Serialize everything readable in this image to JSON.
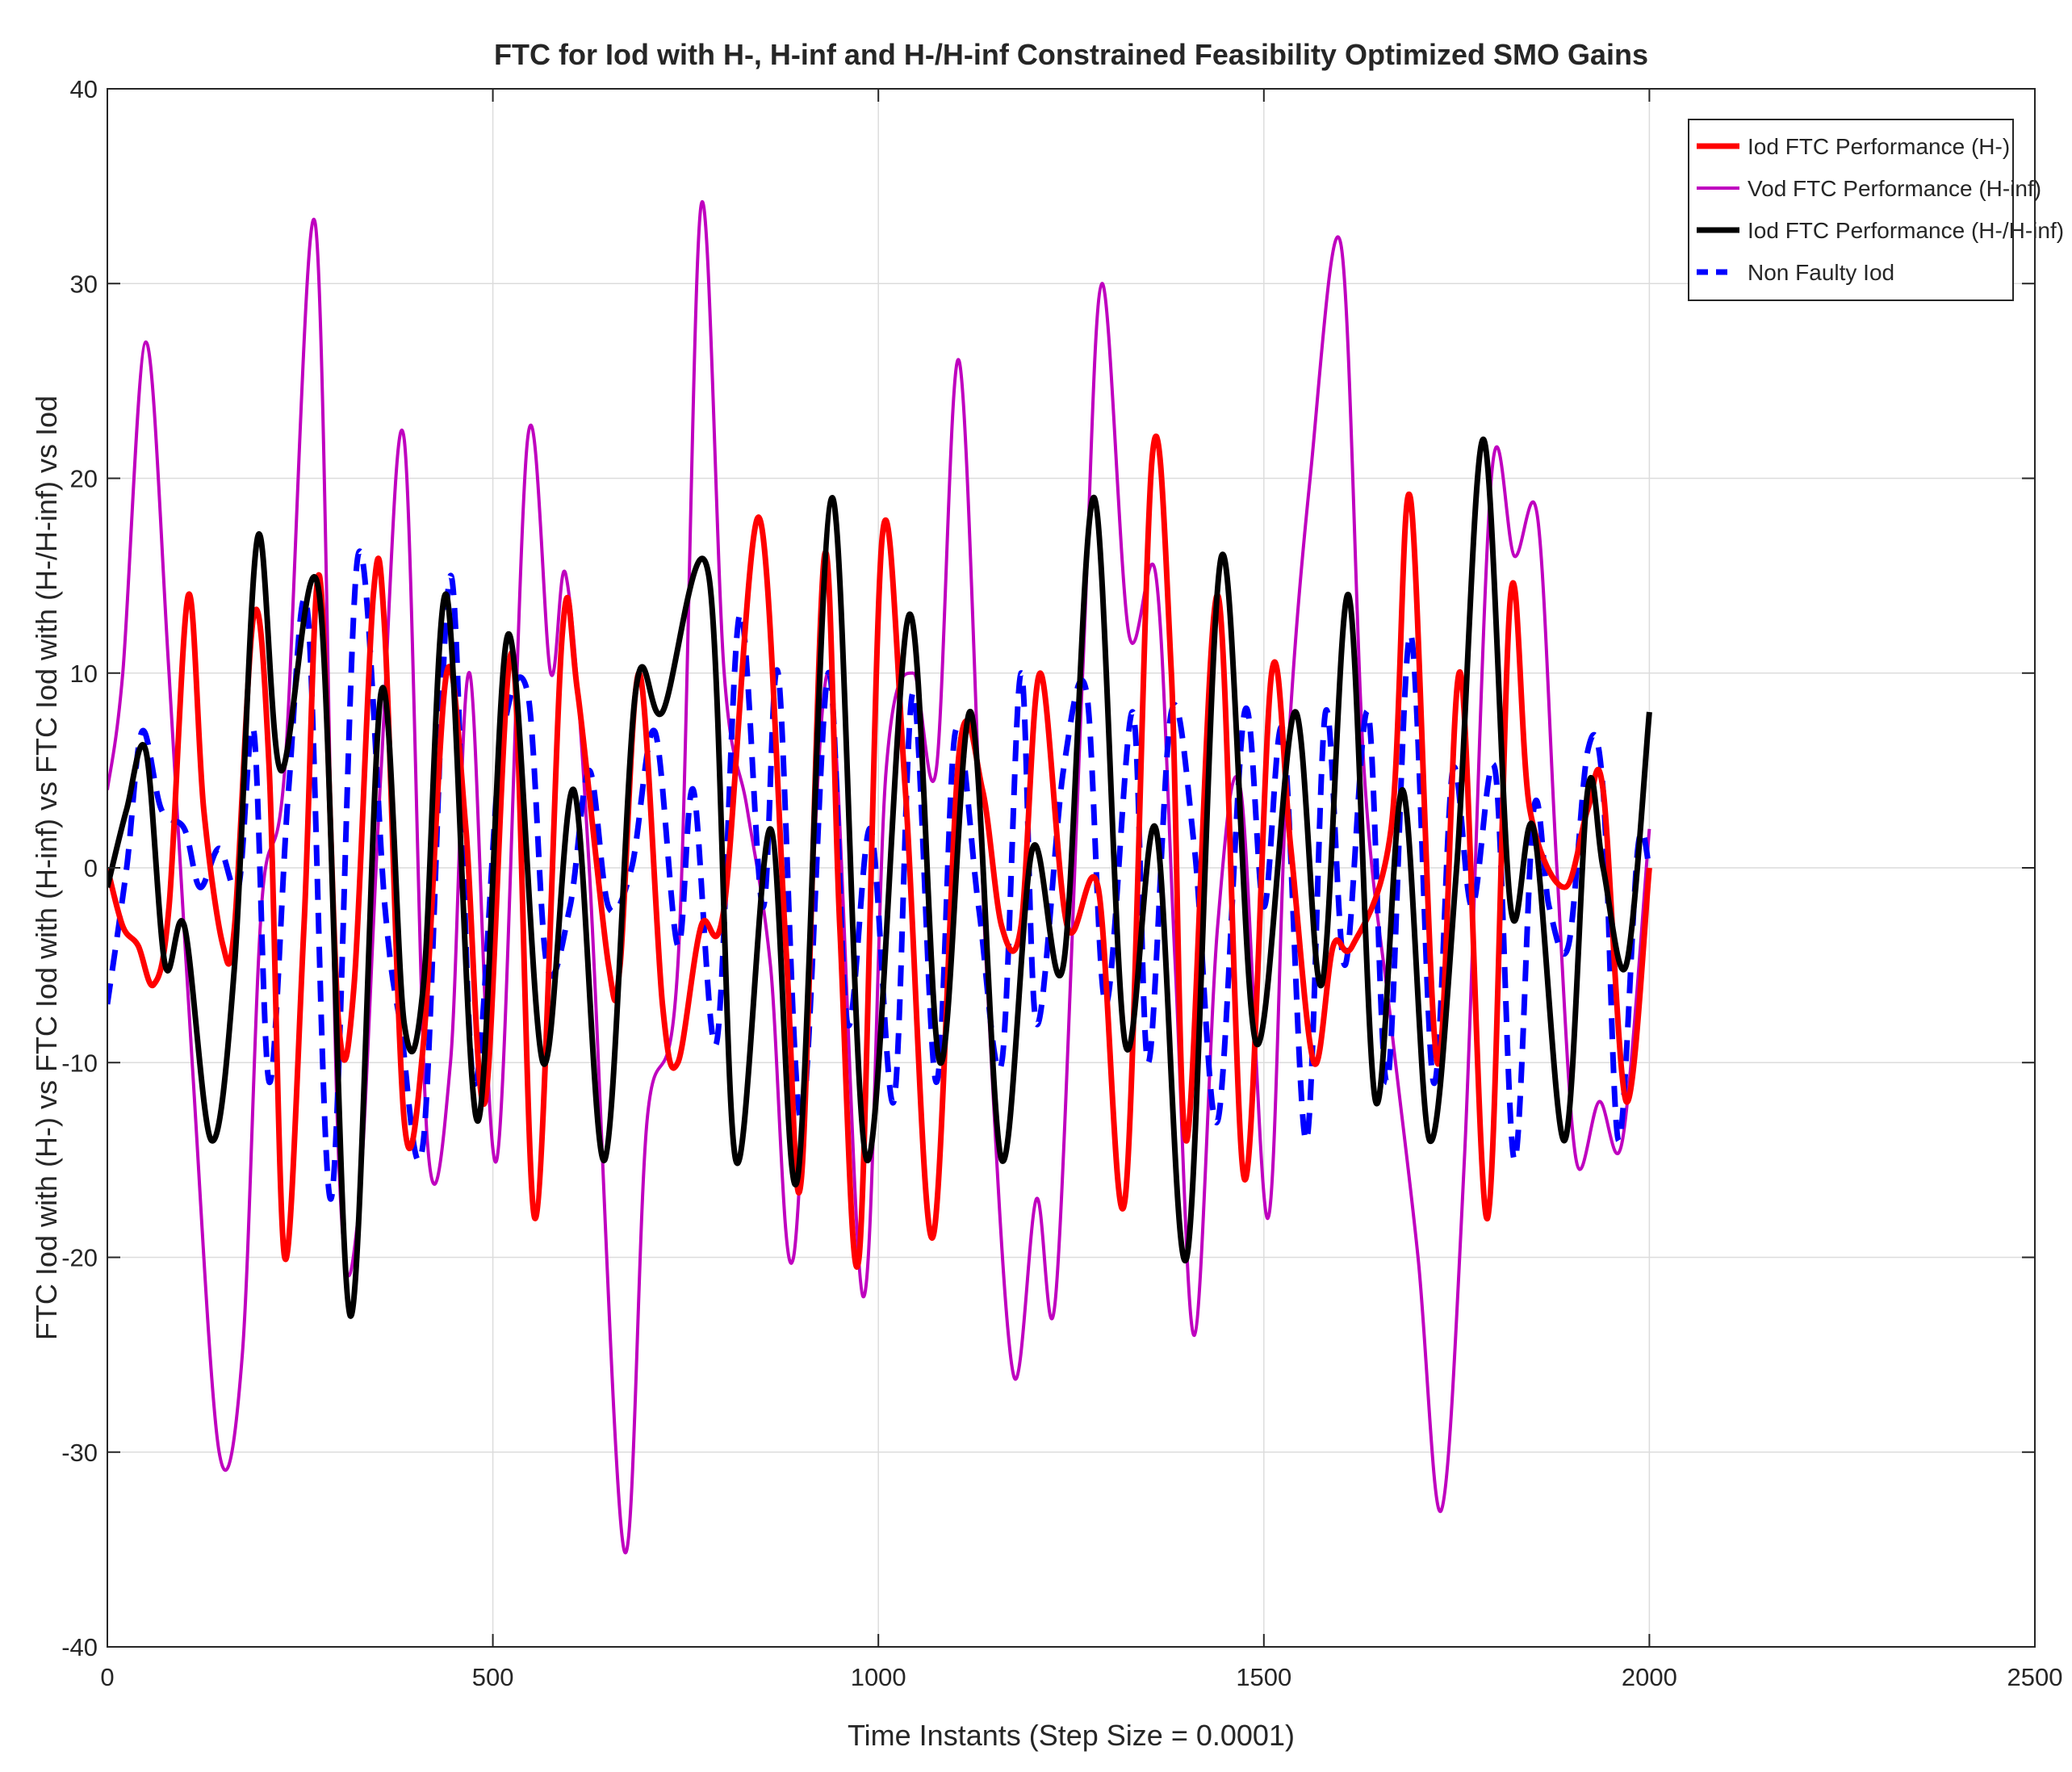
{
  "chart_data": {
    "type": "line",
    "title": "FTC for Iod with H-, H-inf and H-/H-inf Constrained Feasibility Optimized SMO Gains",
    "xlabel": "Time Instants (Step Size = 0.0001)",
    "ylabel": "FTC Iod with (H-) vs FTC Iod with (H-inf) vs FTC Iod with (H-/H-inf) vs Iod",
    "xlim": [
      0,
      2500
    ],
    "ylim": [
      -40,
      40
    ],
    "xticks": [
      0,
      500,
      1000,
      1500,
      2000,
      2500
    ],
    "yticks": [
      -40,
      -30,
      -20,
      -10,
      0,
      10,
      20,
      30,
      40
    ],
    "grid": true,
    "legend_location": "top-right",
    "series": [
      {
        "name": "Iod FTC Performance (H-)",
        "color": "#ff0000",
        "style": "solid",
        "x": [
          0,
          20,
          40,
          60,
          80,
          105,
          125,
          150,
          165,
          190,
          210,
          230,
          255,
          275,
          300,
          320,
          345,
          360,
          385,
          410,
          440,
          465,
          490,
          525,
          555,
          590,
          610,
          650,
          665,
          690,
          720,
          740,
          770,
          800,
          845,
          880,
          900,
          930,
          950,
          975,
          1005,
          1035,
          1070,
          1105,
          1135,
          1160,
          1185,
          1210,
          1245,
          1285,
          1320,
          1355,
          1380,
          1400,
          1440,
          1475,
          1510,
          1535,
          1565,
          1590,
          1615,
          1665,
          1690,
          1725,
          1755,
          1790,
          1820,
          1845,
          1890,
          1920,
          1940,
          1970,
          2000
        ],
        "y": [
          0,
          -3,
          -4,
          -6,
          -2,
          14,
          3,
          -4,
          -3,
          13,
          5,
          -20,
          -3,
          15,
          -8,
          -6,
          14,
          12,
          -13,
          -9,
          10,
          2,
          -12,
          11,
          -18,
          12,
          9,
          -5,
          -5,
          10,
          -7,
          -10,
          -3,
          -2,
          18,
          -4,
          -16,
          16,
          -3,
          -20,
          17,
          4,
          -19,
          6,
          4,
          -3,
          -3,
          10,
          -3,
          -1,
          -17,
          21,
          10,
          -14,
          14,
          -16,
          10,
          1,
          -10,
          -4,
          -4,
          2,
          19,
          -10,
          10,
          -18,
          14,
          3,
          -1,
          3,
          4,
          -12,
          0
        ]
      },
      {
        "name": "Vod FTC Performance (H-inf)",
        "color": "#bf00bf",
        "style": "solid",
        "x": [
          0,
          20,
          50,
          80,
          110,
          145,
          175,
          200,
          230,
          270,
          300,
          325,
          355,
          385,
          415,
          445,
          470,
          505,
          545,
          575,
          595,
          625,
          670,
          700,
          740,
          770,
          800,
          830,
          860,
          890,
          935,
          980,
          1010,
          1045,
          1075,
          1105,
          1140,
          1175,
          1205,
          1230,
          1265,
          1290,
          1325,
          1360,
          1385,
          1410,
          1440,
          1470,
          1505,
          1530,
          1560,
          1600,
          1630,
          1665,
          1700,
          1730,
          1760,
          1795,
          1825,
          1855,
          1880,
          1905,
          1935,
          1965,
          2000
        ],
        "y": [
          4,
          10,
          27,
          10,
          -10,
          -30,
          -25,
          -2,
          5,
          33,
          -15,
          -18,
          5,
          22,
          -14,
          -10,
          10,
          -15,
          22,
          10,
          15,
          0,
          -35,
          -13,
          -5,
          34,
          10,
          3,
          -5,
          -20,
          10,
          -22,
          5,
          10,
          5,
          26,
          -5,
          -26,
          -17,
          -22,
          10,
          30,
          12,
          15,
          -5,
          -24,
          -3,
          4,
          -18,
          5,
          20,
          32,
          5,
          -8,
          -20,
          -33,
          -15,
          20,
          16,
          18,
          0,
          -15,
          -12,
          -14,
          2
        ]
      },
      {
        "name": "Iod FTC Performance (H-/H-inf)",
        "color": "#000000",
        "style": "solid",
        "x": [
          0,
          25,
          50,
          75,
          100,
          135,
          165,
          195,
          225,
          275,
          315,
          355,
          385,
          410,
          440,
          480,
          520,
          565,
          605,
          645,
          685,
          720,
          780,
          815,
          860,
          895,
          940,
          985,
          1040,
          1080,
          1120,
          1160,
          1200,
          1240,
          1280,
          1320,
          1360,
          1400,
          1445,
          1490,
          1540,
          1575,
          1610,
          1645,
          1680,
          1715,
          1750,
          1785,
          1820,
          1850,
          1890,
          1920,
          1940,
          1970,
          2000
        ],
        "y": [
          -1,
          3,
          6,
          -5,
          -3,
          -14,
          -5,
          17,
          5,
          14,
          -23,
          9,
          -8,
          -6,
          14,
          -13,
          12,
          -10,
          4,
          -15,
          9,
          8,
          15,
          -15,
          2,
          -16,
          19,
          -15,
          13,
          -10,
          8,
          -15,
          1,
          -5,
          19,
          -9,
          2,
          -20,
          16,
          -9,
          8,
          -6,
          14,
          -12,
          4,
          -14,
          0,
          22,
          -2,
          2,
          -14,
          4,
          0,
          -5,
          8
        ]
      },
      {
        "name": "Non Faulty Iod",
        "color": "#0000ff",
        "style": "dashed",
        "x": [
          0,
          25,
          45,
          70,
          100,
          120,
          145,
          170,
          190,
          210,
          235,
          260,
          290,
          325,
          360,
          380,
          410,
          445,
          475,
          510,
          545,
          570,
          600,
          625,
          650,
          680,
          710,
          740,
          760,
          790,
          820,
          850,
          870,
          900,
          935,
          960,
          990,
          1020,
          1045,
          1075,
          1100,
          1130,
          1160,
          1185,
          1205,
          1240,
          1270,
          1295,
          1330,
          1350,
          1380,
          1410,
          1440,
          1475,
          1500,
          1525,
          1555,
          1580,
          1605,
          1635,
          1660,
          1690,
          1720,
          1745,
          1770,
          1800,
          1825,
          1850,
          1870,
          1895,
          1920,
          1940,
          1960,
          1985,
          2000
        ],
        "y": [
          -7,
          0,
          7,
          3,
          2,
          -1,
          1,
          -1,
          7,
          -11,
          4,
          13,
          -17,
          16,
          -2,
          -8,
          -14,
          15,
          -11,
          6,
          9,
          -5,
          -2,
          5,
          -2,
          0,
          7,
          -4,
          4,
          -9,
          13,
          -2,
          10,
          -13,
          10,
          -8,
          2,
          -12,
          9,
          -11,
          7,
          -2,
          -10,
          10,
          -8,
          5,
          9,
          -7,
          8,
          -10,
          8,
          1,
          -13,
          8,
          -2,
          7,
          -14,
          8,
          -5,
          8,
          -11,
          12,
          -11,
          5,
          -2,
          5,
          -15,
          3,
          -2,
          -4,
          6,
          4,
          -14,
          1,
          0
        ]
      }
    ]
  }
}
